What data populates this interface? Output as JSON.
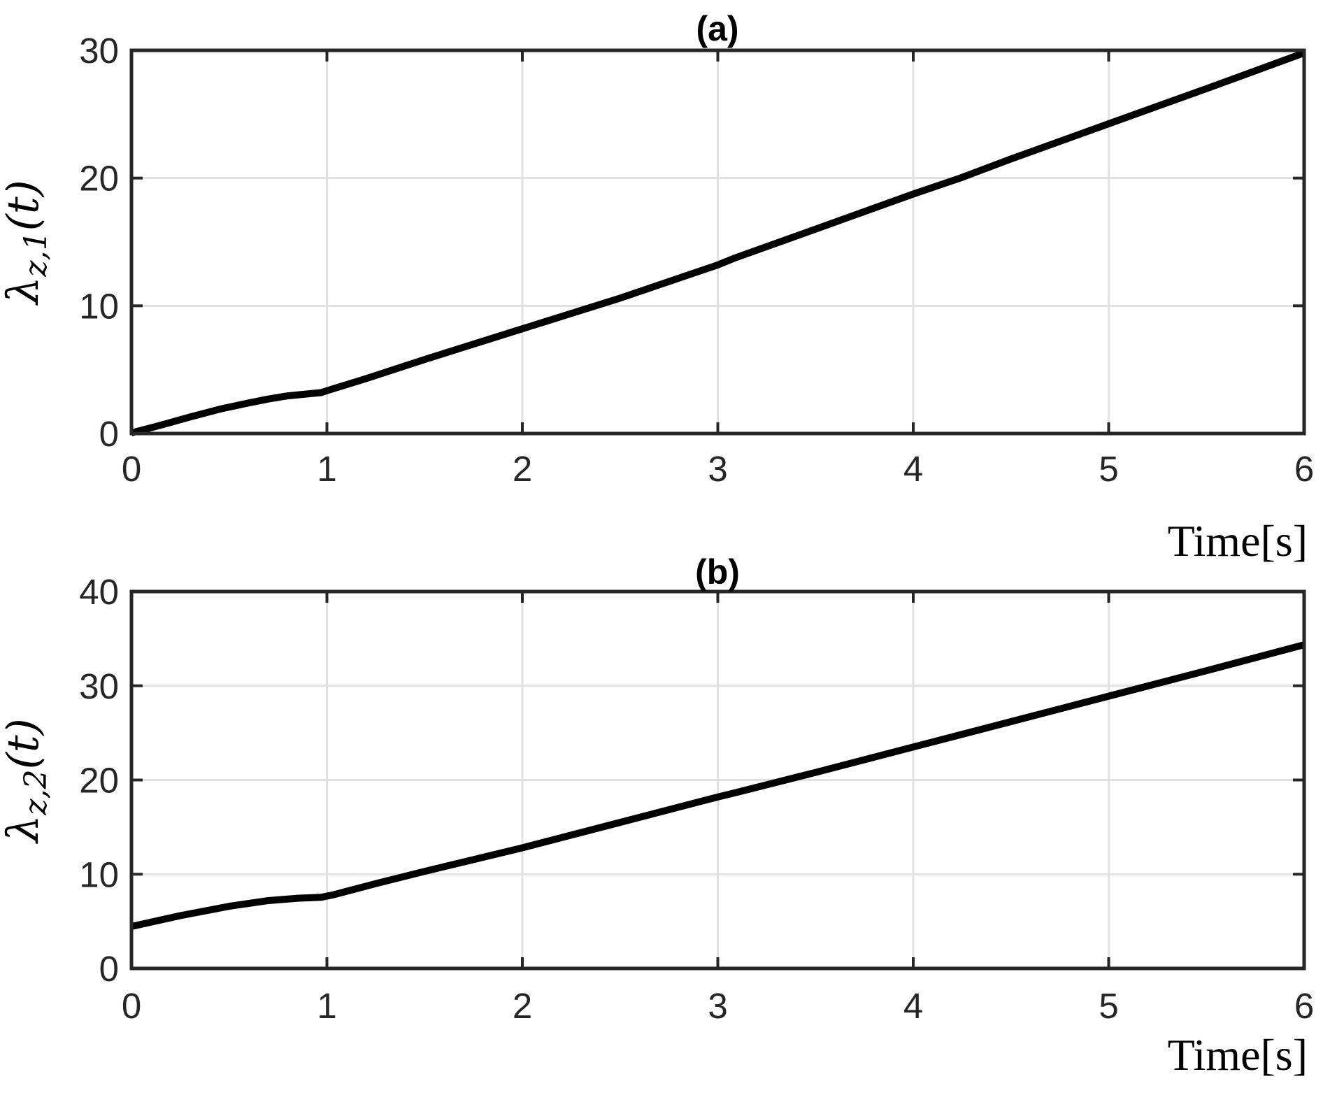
{
  "style": {
    "background": "#ffffff",
    "axis_color": "#262626",
    "grid_color": "#e2e2e2",
    "curve_color": "#000000",
    "tick_label_color": "#262626"
  },
  "chart_data": [
    {
      "type": "line",
      "title": "(a)",
      "xlabel": "Time[s]",
      "ylabel_lambda": "λ",
      "ylabel_sub": "z,1",
      "ylabel_arg": "(t)",
      "xlim": [
        0,
        6
      ],
      "ylim": [
        0,
        30
      ],
      "xticks": [
        0,
        1,
        2,
        3,
        4,
        5,
        6
      ],
      "yticks": [
        0,
        10,
        20,
        30
      ],
      "grid": true,
      "legend": "none",
      "series": [
        {
          "name": "lambda_z1",
          "x": [
            0,
            0.15,
            0.3,
            0.45,
            0.6,
            0.7,
            0.8,
            0.9,
            0.97,
            1.02,
            1.2,
            1.5,
            2.0,
            2.5,
            3.0,
            3.08,
            3.5,
            4.0,
            4.24,
            4.5,
            5.0,
            5.5,
            6.0
          ],
          "y": [
            0.05,
            0.65,
            1.3,
            1.9,
            2.4,
            2.7,
            2.95,
            3.1,
            3.2,
            3.45,
            4.3,
            5.8,
            8.2,
            10.6,
            13.2,
            13.7,
            16.0,
            18.75,
            20.0,
            21.5,
            24.25,
            27.0,
            29.8
          ]
        }
      ]
    },
    {
      "type": "line",
      "title": "(b)",
      "xlabel": "Time[s]",
      "ylabel_lambda": "λ",
      "ylabel_sub": "z,2",
      "ylabel_arg": "(t)",
      "xlim": [
        0,
        6
      ],
      "ylim": [
        0,
        40
      ],
      "xticks": [
        0,
        1,
        2,
        3,
        4,
        5,
        6
      ],
      "yticks": [
        0,
        10,
        20,
        30,
        40
      ],
      "grid": true,
      "legend": "none",
      "series": [
        {
          "name": "lambda_z2",
          "x": [
            0,
            0.25,
            0.5,
            0.7,
            0.85,
            0.97,
            1.03,
            1.25,
            1.5,
            2.0,
            2.5,
            3.0,
            3.1,
            3.5,
            4.0,
            4.5,
            5.0,
            5.5,
            6.0
          ],
          "y": [
            4.45,
            5.6,
            6.6,
            7.2,
            7.45,
            7.55,
            7.8,
            9.0,
            10.3,
            12.8,
            15.5,
            18.2,
            18.7,
            20.8,
            23.5,
            26.2,
            28.9,
            31.6,
            34.35
          ]
        }
      ]
    }
  ]
}
